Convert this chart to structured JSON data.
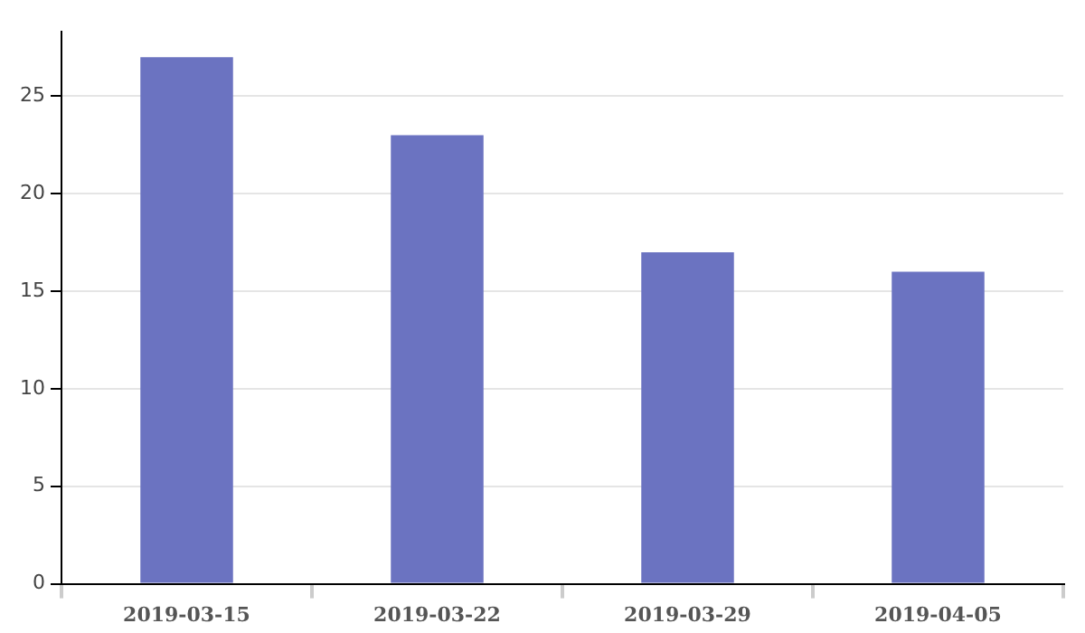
{
  "chart_data": {
    "type": "bar",
    "categories": [
      "2019-03-15",
      "2019-03-22",
      "2019-03-29",
      "2019-04-05"
    ],
    "values": [
      27,
      23,
      17,
      16
    ],
    "color": "#6b73c1",
    "ylim": [
      0,
      28.3
    ],
    "yticks": [
      0,
      5,
      10,
      15,
      20,
      25
    ],
    "grid": "y"
  }
}
